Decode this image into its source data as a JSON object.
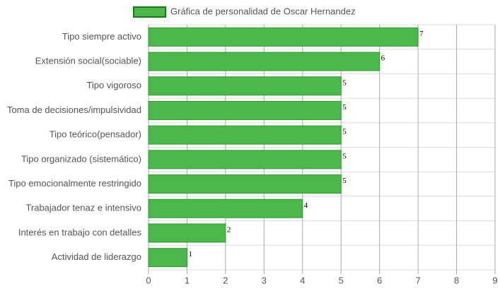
{
  "chart_data": {
    "type": "bar",
    "orientation": "horizontal",
    "categories": [
      "Tipo siempre activo",
      "Extensión social(sociable)",
      "Tipo vigoroso",
      "Toma de decisiones/impulsividad",
      "Tipo teórico(pensador)",
      "Tipo organizado (sistemático)",
      "Tipo emocionalmente restringido",
      "Trabajador tenaz e intensivo",
      "Interés en trabajo con detalles",
      "Actividad de liderazgo"
    ],
    "series": [
      {
        "name": "Gráfica de personalidad de Oscar Hernandez",
        "color": "#4cb84c",
        "border_color": "#2e9a2e",
        "values": [
          7,
          6,
          5,
          5,
          5,
          5,
          5,
          4,
          2,
          1
        ]
      }
    ],
    "xlim": [
      0,
      9
    ],
    "xticks": [
      0,
      1,
      2,
      3,
      4,
      5,
      6,
      7,
      8,
      9
    ],
    "grid": true,
    "legend": "top",
    "data_labels": true
  }
}
